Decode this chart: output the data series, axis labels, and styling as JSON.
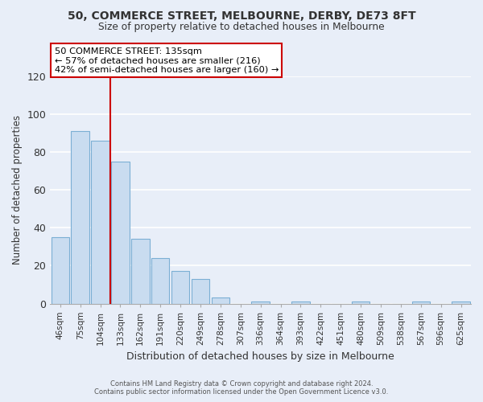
{
  "title": "50, COMMERCE STREET, MELBOURNE, DERBY, DE73 8FT",
  "subtitle": "Size of property relative to detached houses in Melbourne",
  "xlabel": "Distribution of detached houses by size in Melbourne",
  "ylabel": "Number of detached properties",
  "footnote1": "Contains HM Land Registry data © Crown copyright and database right 2024.",
  "footnote2": "Contains public sector information licensed under the Open Government Licence v3.0.",
  "bin_labels": [
    "46sqm",
    "75sqm",
    "104sqm",
    "133sqm",
    "162sqm",
    "191sqm",
    "220sqm",
    "249sqm",
    "278sqm",
    "307sqm",
    "336sqm",
    "364sqm",
    "393sqm",
    "422sqm",
    "451sqm",
    "480sqm",
    "509sqm",
    "538sqm",
    "567sqm",
    "596sqm",
    "625sqm"
  ],
  "bar_heights": [
    35,
    91,
    86,
    75,
    34,
    24,
    17,
    13,
    3,
    0,
    1,
    0,
    1,
    0,
    0,
    1,
    0,
    0,
    1,
    0,
    1
  ],
  "bar_color": "#c9dcf0",
  "bar_edge_color": "#7bafd4",
  "vline_x": 2.5,
  "vline_color": "#cc0000",
  "annotation_title": "50 COMMERCE STREET: 135sqm",
  "annotation_line1": "← 57% of detached houses are smaller (216)",
  "annotation_line2": "42% of semi-detached houses are larger (160) →",
  "annotation_box_color": "#ffffff",
  "annotation_box_edge": "#cc0000",
  "ylim": [
    0,
    120
  ],
  "yticks": [
    0,
    20,
    40,
    60,
    80,
    100,
    120
  ],
  "bg_color": "#e8eef8",
  "grid_color": "#ffffff",
  "spine_color": "#aaaaaa"
}
